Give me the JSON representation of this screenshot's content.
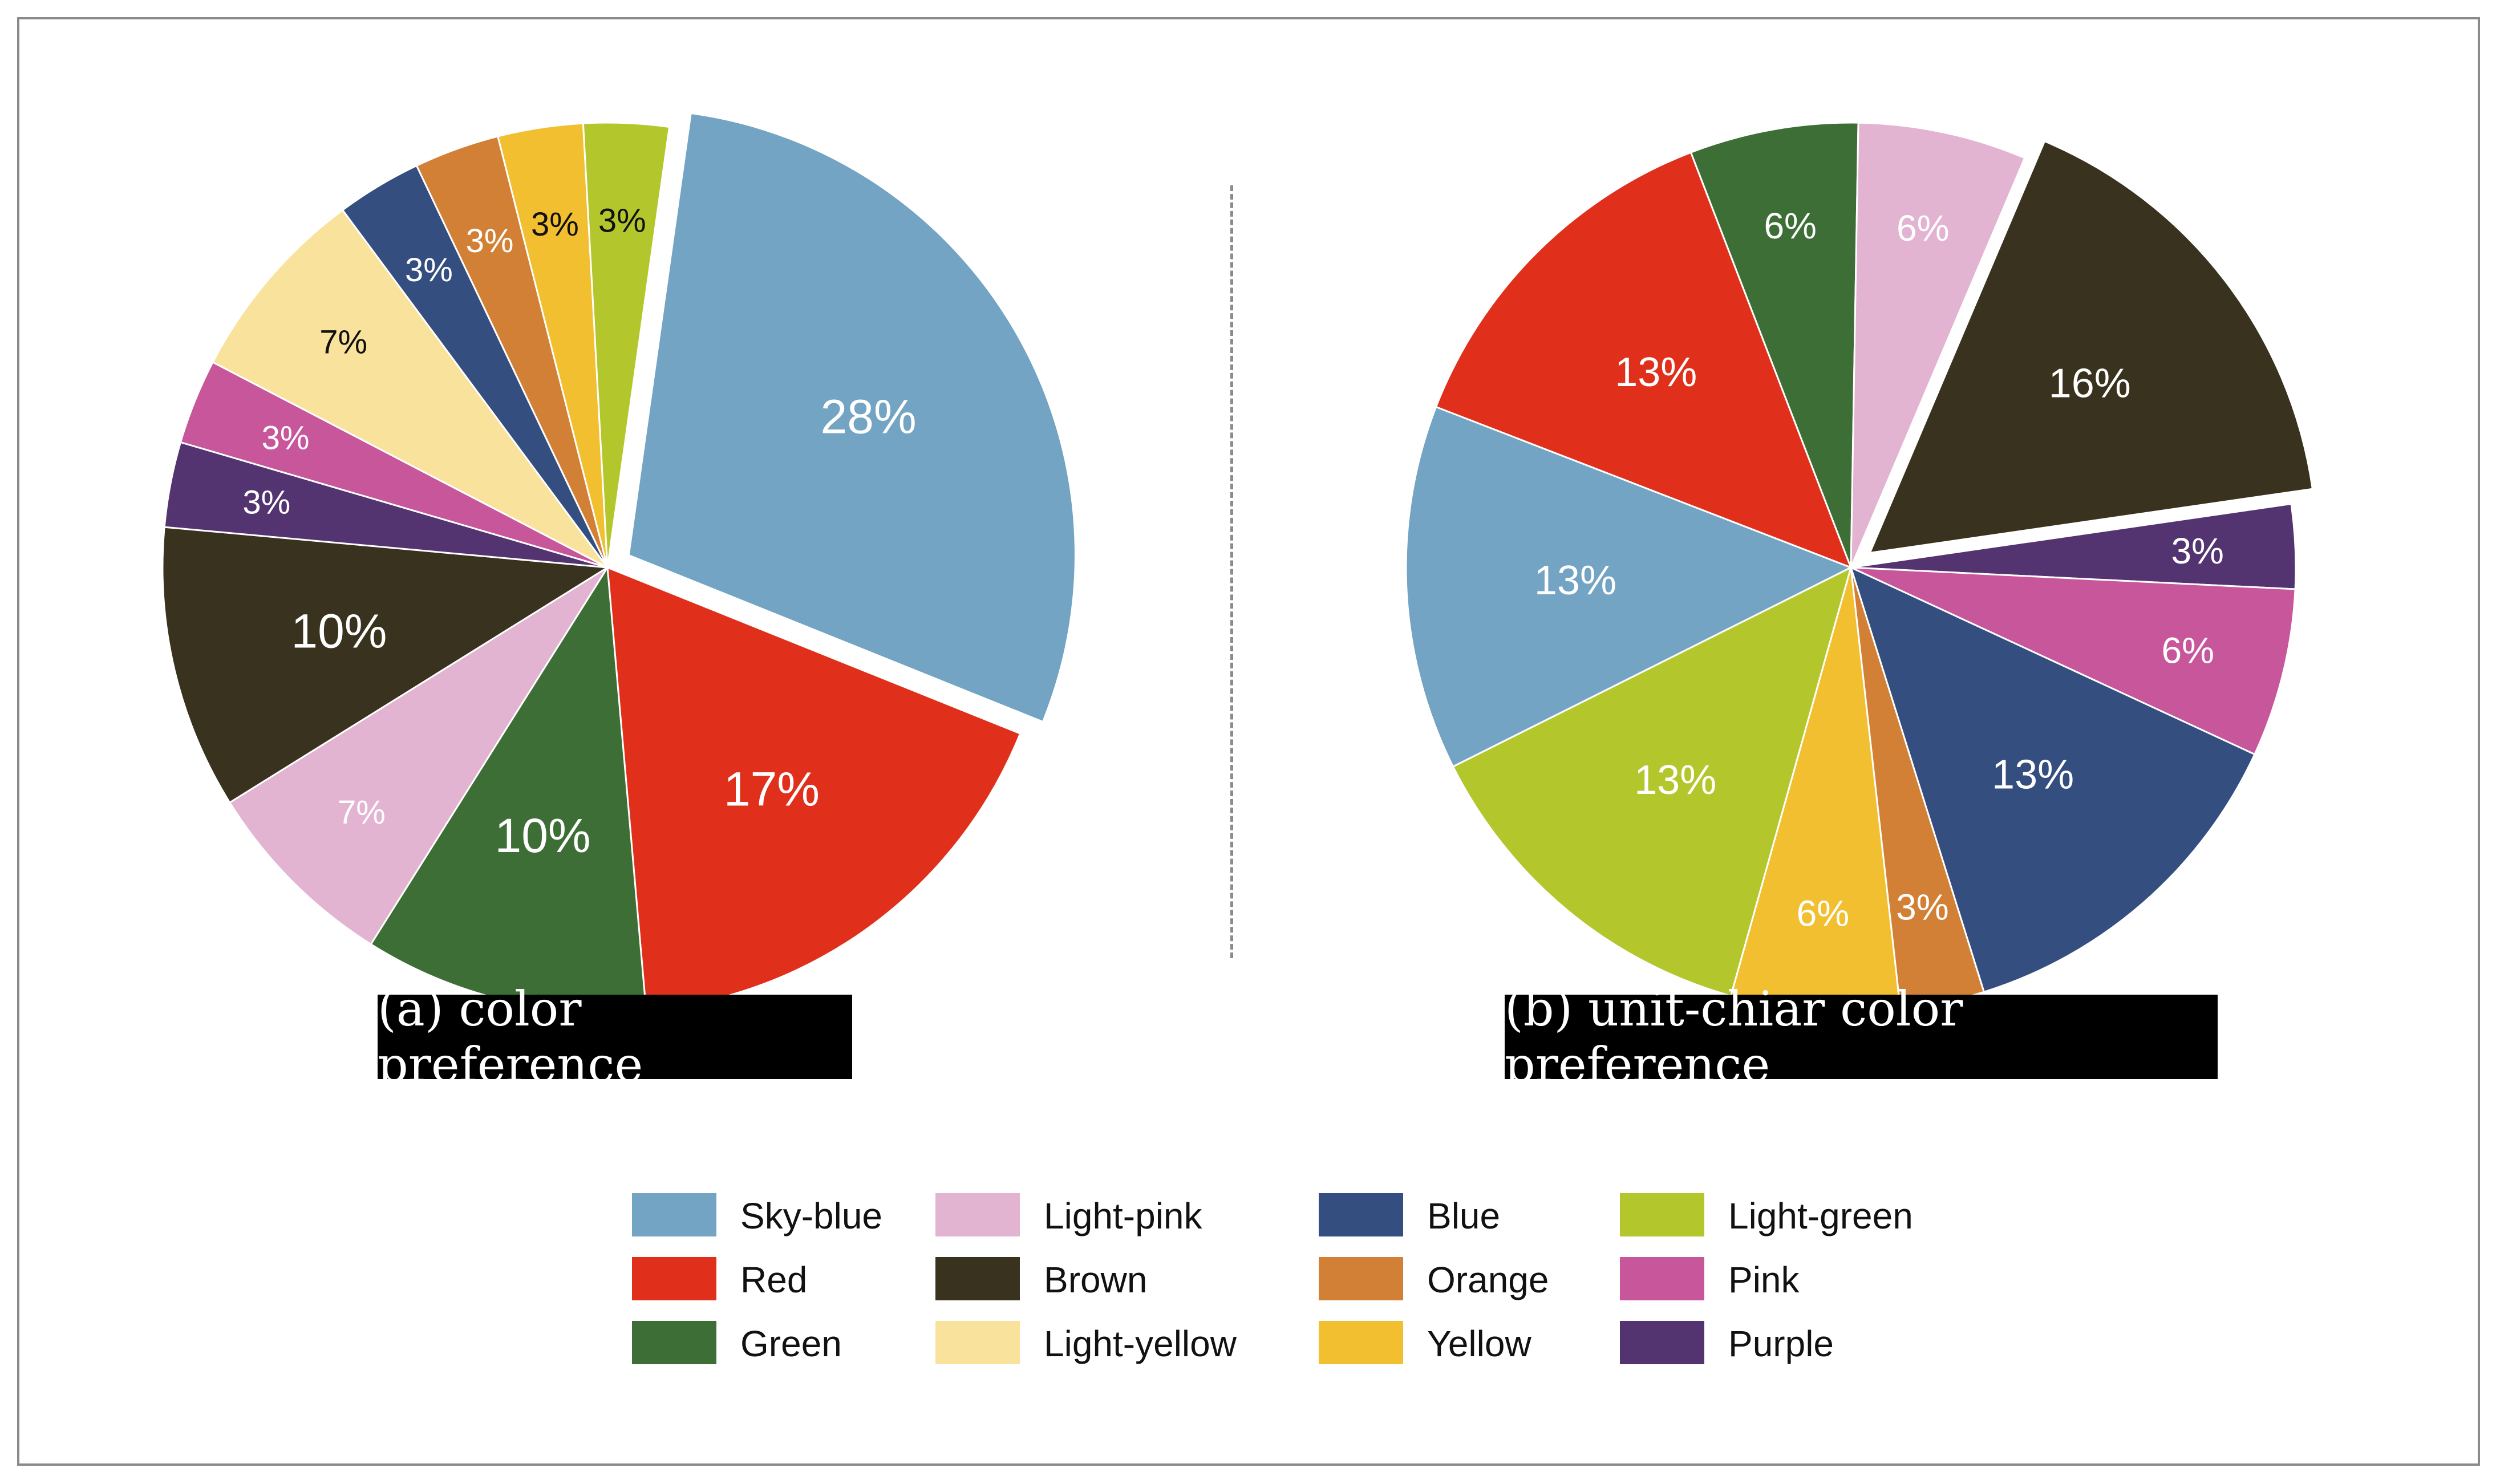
{
  "colors": {
    "Sky-blue": "#74a4c3",
    "Red": "#e0301b",
    "Green": "#3d6e36",
    "Light-pink": "#e2b4d1",
    "Brown": "#38321e",
    "Light-yellow": "#f9e39c",
    "Blue": "#344e80",
    "Orange": "#d28036",
    "Yellow": "#f2bf30",
    "Light-green": "#b3c72d",
    "Pink": "#c7569b",
    "Purple": "#533470"
  },
  "chart_data": [
    {
      "type": "pie",
      "title": "(a) color preference",
      "slices": [
        {
          "name": "Sky-blue",
          "value": 28,
          "label": "28%",
          "exploded": true,
          "label_color": "#ffffff"
        },
        {
          "name": "Red",
          "value": 17,
          "label": "17%",
          "label_color": "#ffffff"
        },
        {
          "name": "Green",
          "value": 10,
          "label": "10%",
          "label_color": "#ffffff"
        },
        {
          "name": "Light-pink",
          "value": 7,
          "label": "7%",
          "label_color": "#ffffff"
        },
        {
          "name": "Brown",
          "value": 10,
          "label": "10%",
          "label_color": "#ffffff"
        },
        {
          "name": "Purple",
          "value": 3,
          "label": "3%",
          "label_color": "#ffffff"
        },
        {
          "name": "Pink",
          "value": 3,
          "label": "3%",
          "label_color": "#ffffff"
        },
        {
          "name": "Light-yellow",
          "value": 7,
          "label": "7%",
          "label_color": "#111111"
        },
        {
          "name": "Blue",
          "value": 3,
          "label": "3%",
          "label_color": "#ffffff"
        },
        {
          "name": "Orange",
          "value": 3,
          "label": "3%",
          "label_color": "#ffffff"
        },
        {
          "name": "Yellow",
          "value": 3,
          "label": "3%",
          "label_color": "#111111"
        },
        {
          "name": "Light-green",
          "value": 3,
          "label": "3%",
          "label_color": "#111111"
        }
      ]
    },
    {
      "type": "pie",
      "title": "(b) unit-chiar color preference",
      "slices": [
        {
          "name": "Brown",
          "value": 16,
          "label": "16%",
          "exploded": true,
          "label_color": "#ffffff"
        },
        {
          "name": "Purple",
          "value": 3,
          "label": "3%",
          "label_color": "#ffffff"
        },
        {
          "name": "Pink",
          "value": 6,
          "label": "6%",
          "label_color": "#ffffff"
        },
        {
          "name": "Blue",
          "value": 13,
          "label": "13%",
          "label_color": "#ffffff"
        },
        {
          "name": "Orange",
          "value": 3,
          "label": "3%",
          "label_color": "#ffffff"
        },
        {
          "name": "Yellow",
          "value": 6,
          "label": "6%",
          "label_color": "#ffffff"
        },
        {
          "name": "Light-green",
          "value": 13,
          "label": "13%",
          "label_color": "#ffffff"
        },
        {
          "name": "Sky-blue",
          "value": 13,
          "label": "13%",
          "label_color": "#ffffff"
        },
        {
          "name": "Red",
          "value": 13,
          "label": "13%",
          "label_color": "#ffffff"
        },
        {
          "name": "Green",
          "value": 6,
          "label": "6%",
          "label_color": "#ffffff"
        },
        {
          "name": "Light-pink",
          "value": 6,
          "label": "6%",
          "label_color": "#ffffff"
        }
      ]
    }
  ],
  "legend": [
    [
      "Sky-blue",
      "Red",
      "Green"
    ],
    [
      "Light-pink",
      "Brown",
      "Light-yellow"
    ],
    [
      "Blue",
      "Orange",
      "Yellow"
    ],
    [
      "Light-green",
      "Pink",
      "Purple"
    ]
  ]
}
